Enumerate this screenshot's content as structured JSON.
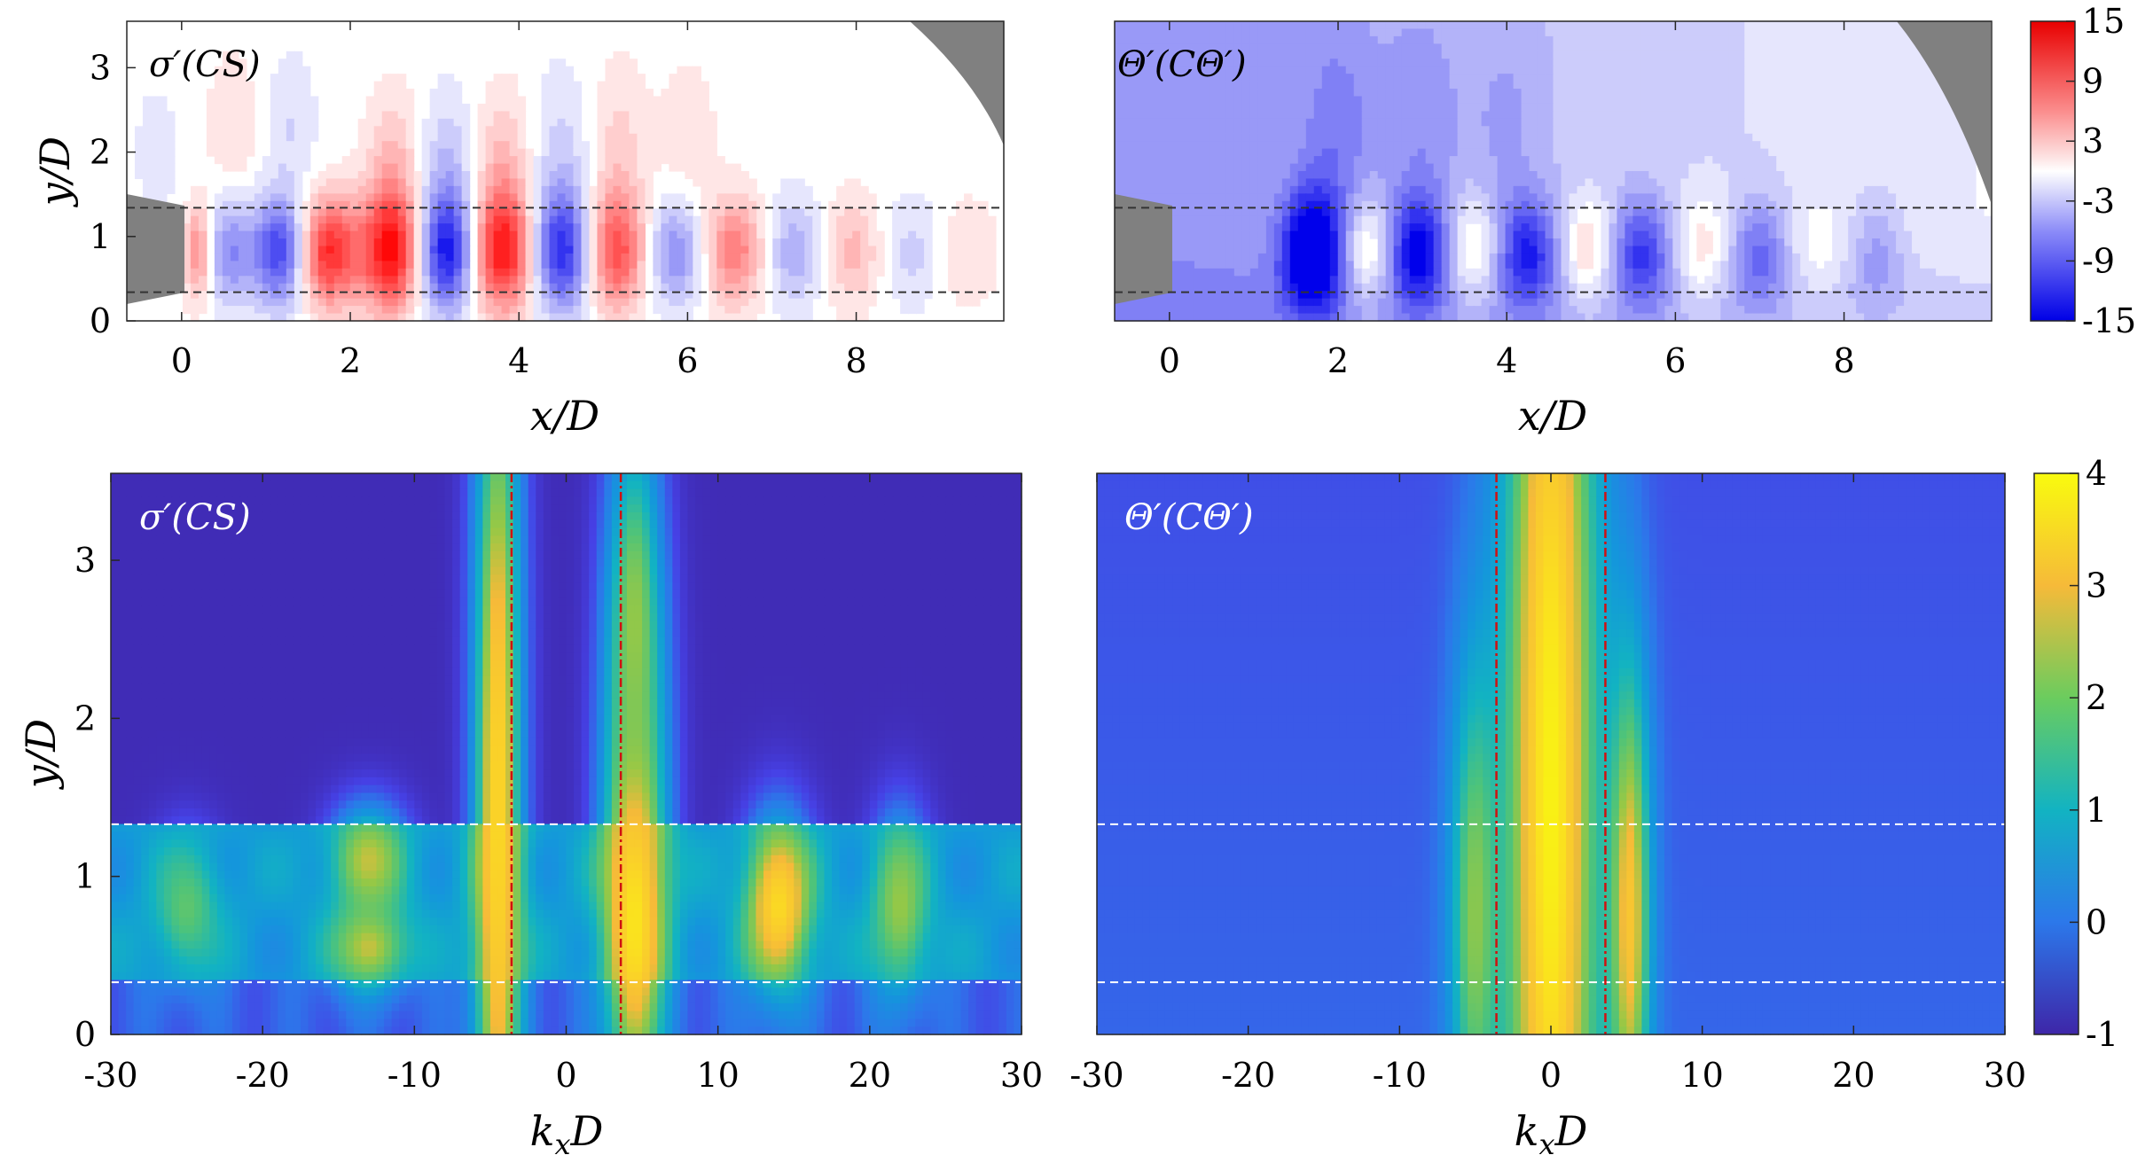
{
  "figure": "four-panel contour figure",
  "chart_data": [
    {
      "id": "top-left",
      "type": "heatmap",
      "title": "σ′(CS)",
      "xlabel": "x/D",
      "ylabel": "y/D",
      "xlim": [
        -0.65,
        9.75
      ],
      "ylim": [
        0,
        3.55
      ],
      "xticks": [
        0,
        2,
        4,
        6,
        8
      ],
      "yticks": [
        0,
        1,
        2,
        3
      ],
      "guide_lines": {
        "orientation": "horizontal",
        "values": [
          0.34,
          1.34
        ],
        "style": "dashed",
        "color": "#333333"
      },
      "colormap": "diverging",
      "note": "alternating red/blue wave packets along shear layer, peak amplitude near x/D 2.5-4",
      "lobes": [
        {
          "x": 0.2,
          "y": 0.82,
          "sign": 1,
          "amp": 0.5,
          "sx": 0.12,
          "sy": 0.4
        },
        {
          "x": 0.55,
          "y": 0.82,
          "sign": -1,
          "amp": 0.45,
          "sx": 0.2,
          "sy": 0.45
        },
        {
          "x": 1.15,
          "y": 0.82,
          "sign": -1,
          "amp": 0.75,
          "sx": 0.22,
          "sy": 0.45
        },
        {
          "x": 1.75,
          "y": 0.82,
          "sign": 1,
          "amp": 0.85,
          "sx": 0.24,
          "sy": 0.45
        },
        {
          "x": 2.5,
          "y": 0.82,
          "sign": 1,
          "amp": 1.0,
          "sx": 0.27,
          "sy": 0.5
        },
        {
          "x": 3.15,
          "y": 0.82,
          "sign": -1,
          "amp": 1.0,
          "sx": 0.27,
          "sy": 0.5
        },
        {
          "x": 3.8,
          "y": 0.82,
          "sign": 1,
          "amp": 1.0,
          "sx": 0.3,
          "sy": 0.5
        },
        {
          "x": 4.5,
          "y": 0.82,
          "sign": -1,
          "amp": 0.9,
          "sx": 0.28,
          "sy": 0.5
        },
        {
          "x": 5.15,
          "y": 0.82,
          "sign": 1,
          "amp": 0.75,
          "sx": 0.28,
          "sy": 0.5
        },
        {
          "x": 5.85,
          "y": 0.82,
          "sign": -1,
          "amp": 0.5,
          "sx": 0.28,
          "sy": 0.45
        },
        {
          "x": 6.55,
          "y": 0.82,
          "sign": 1,
          "amp": 0.55,
          "sx": 0.28,
          "sy": 0.45
        },
        {
          "x": 7.25,
          "y": 0.82,
          "sign": -1,
          "amp": 0.35,
          "sx": 0.27,
          "sy": 0.45
        },
        {
          "x": 7.95,
          "y": 0.82,
          "sign": 1,
          "amp": 0.3,
          "sx": 0.27,
          "sy": 0.45
        },
        {
          "x": 8.65,
          "y": 0.82,
          "sign": -1,
          "amp": 0.2,
          "sx": 0.27,
          "sy": 0.45
        },
        {
          "x": 9.3,
          "y": 0.82,
          "sign": 1,
          "amp": 0.15,
          "sx": 0.27,
          "sy": 0.45
        },
        {
          "x": 2.5,
          "y": 1.9,
          "sign": 1,
          "amp": 0.25,
          "sx": 0.22,
          "sy": 0.6
        },
        {
          "x": 3.15,
          "y": 1.9,
          "sign": -1,
          "amp": 0.22,
          "sx": 0.22,
          "sy": 0.6
        },
        {
          "x": 3.8,
          "y": 1.9,
          "sign": 1,
          "amp": 0.25,
          "sx": 0.22,
          "sy": 0.6
        },
        {
          "x": 4.5,
          "y": 2.0,
          "sign": -1,
          "amp": 0.18,
          "sx": 0.22,
          "sy": 0.7
        },
        {
          "x": 5.2,
          "y": 2.1,
          "sign": 1,
          "amp": 0.18,
          "sx": 0.22,
          "sy": 0.7
        },
        {
          "x": 6.0,
          "y": 2.1,
          "sign": 1,
          "amp": 0.12,
          "sx": 0.25,
          "sy": 0.7
        },
        {
          "x": 0.6,
          "y": 2.3,
          "sign": 1,
          "amp": 0.15,
          "sx": 0.2,
          "sy": 0.6
        },
        {
          "x": 1.3,
          "y": 2.3,
          "sign": -1,
          "amp": 0.15,
          "sx": 0.2,
          "sy": 0.6
        },
        {
          "x": -0.3,
          "y": 2.0,
          "sign": -1,
          "amp": 0.1,
          "sx": 0.2,
          "sy": 0.6
        }
      ]
    },
    {
      "id": "top-right",
      "type": "heatmap",
      "title": "Θ′(CΘ′)",
      "xlabel": "x/D",
      "ylabel": "",
      "xlim": [
        -0.65,
        9.75
      ],
      "ylim": [
        0,
        3.55
      ],
      "xticks": [
        0,
        2,
        4,
        6,
        8
      ],
      "yticks": [],
      "guide_lines": {
        "orientation": "horizontal",
        "values": [
          0.34,
          1.34
        ],
        "style": "dashed",
        "color": "#333333"
      },
      "colormap": "diverging",
      "note": "blue background with alternating lobes strongest near x/D 1.7",
      "lobes": [
        {
          "x": 1.7,
          "y": 0.82,
          "sign": -1,
          "amp": 0.95,
          "sx": 0.25,
          "sy": 0.5
        },
        {
          "x": 2.35,
          "y": 0.82,
          "sign": 1,
          "amp": 0.45,
          "sx": 0.22,
          "sy": 0.45
        },
        {
          "x": 2.95,
          "y": 0.82,
          "sign": -1,
          "amp": 0.7,
          "sx": 0.24,
          "sy": 0.45
        },
        {
          "x": 3.6,
          "y": 0.82,
          "sign": 1,
          "amp": 0.4,
          "sx": 0.22,
          "sy": 0.45
        },
        {
          "x": 4.25,
          "y": 0.82,
          "sign": -1,
          "amp": 0.6,
          "sx": 0.24,
          "sy": 0.45
        },
        {
          "x": 4.95,
          "y": 0.82,
          "sign": 1,
          "amp": 0.4,
          "sx": 0.22,
          "sy": 0.45
        },
        {
          "x": 5.6,
          "y": 0.82,
          "sign": -1,
          "amp": 0.55,
          "sx": 0.24,
          "sy": 0.45
        },
        {
          "x": 6.3,
          "y": 0.82,
          "sign": 1,
          "amp": 0.3,
          "sx": 0.22,
          "sy": 0.45
        },
        {
          "x": 7.0,
          "y": 0.82,
          "sign": -1,
          "amp": 0.4,
          "sx": 0.22,
          "sy": 0.45
        },
        {
          "x": 7.7,
          "y": 0.82,
          "sign": 1,
          "amp": 0.15,
          "sx": 0.22,
          "sy": 0.45
        },
        {
          "x": 8.4,
          "y": 0.82,
          "sign": -1,
          "amp": 0.25,
          "sx": 0.22,
          "sy": 0.45
        },
        {
          "x": 2.0,
          "y": 2.2,
          "sign": -1,
          "amp": 0.2,
          "sx": 0.3,
          "sy": 0.9
        },
        {
          "x": 3.0,
          "y": 2.3,
          "sign": -1,
          "amp": 0.15,
          "sx": 0.3,
          "sy": 0.9
        },
        {
          "x": 4.0,
          "y": 2.4,
          "sign": -1,
          "amp": 0.12,
          "sx": 0.3,
          "sy": 0.9
        }
      ],
      "background_gradient": true
    },
    {
      "id": "top-colorbar",
      "type": "colorbar",
      "ticks": [
        "15",
        "9",
        "3",
        "-3",
        "-9",
        "-15"
      ],
      "range": [
        -15,
        15
      ]
    },
    {
      "id": "bottom-left",
      "type": "heatmap",
      "title": "σ′(CS)",
      "xlabel": "k_xD",
      "ylabel": "y/D",
      "xlim": [
        -30,
        30
      ],
      "ylim": [
        0,
        3.55
      ],
      "xticks": [
        -30,
        -20,
        -10,
        0,
        10,
        20,
        30
      ],
      "yticks": [
        0,
        1,
        2,
        3
      ],
      "guide_lines_h": {
        "values": [
          0.33,
          1.33
        ],
        "style": "dashed",
        "color": "#ffffff"
      },
      "guide_lines_v": {
        "values": [
          -3.6,
          3.6
        ],
        "style": "dash-dot",
        "color": "#d01010"
      },
      "colormap": "parula",
      "range": [
        -1,
        4
      ],
      "background_value": -0.85,
      "band_value": 1.0,
      "features": [
        {
          "kx": -4.5,
          "y": 1.5,
          "val": 3.6,
          "skx": 1.2,
          "sy": 2.5
        },
        {
          "kx": 4.5,
          "y": 0.9,
          "val": 4.0,
          "skx": 1.5,
          "sy": 1.0
        },
        {
          "kx": 4.5,
          "y": 2.6,
          "val": 2.6,
          "skx": 1.4,
          "sy": 1.0
        },
        {
          "kx": 14.0,
          "y": 0.82,
          "val": 3.6,
          "skx": 1.6,
          "sy": 0.4
        },
        {
          "kx": 22.0,
          "y": 0.82,
          "val": 2.6,
          "skx": 1.4,
          "sy": 0.4
        },
        {
          "kx": -13.0,
          "y": 1.1,
          "val": 2.8,
          "skx": 1.8,
          "sy": 0.25
        },
        {
          "kx": -13.0,
          "y": 0.55,
          "val": 2.8,
          "skx": 1.8,
          "sy": 0.2
        },
        {
          "kx": -25.0,
          "y": 0.8,
          "val": 2.2,
          "skx": 1.6,
          "sy": 0.3
        }
      ]
    },
    {
      "id": "bottom-right",
      "type": "heatmap",
      "title": "Θ′(CΘ′)",
      "xlabel": "k_xD",
      "ylabel": "",
      "xlim": [
        -30,
        30
      ],
      "ylim": [
        0,
        3.55
      ],
      "xticks": [
        -30,
        -20,
        -10,
        0,
        10,
        20,
        30
      ],
      "yticks": [],
      "guide_lines_h": {
        "values": [
          0.33,
          1.33
        ],
        "style": "dashed",
        "color": "#ffffff"
      },
      "guide_lines_v": {
        "values": [
          -3.6,
          3.6
        ],
        "style": "dash-dot",
        "color": "#d01010"
      },
      "colormap": "parula",
      "range": [
        -1,
        4
      ],
      "background_value": 0.05,
      "features": [
        {
          "kx": 0.0,
          "y": 1.8,
          "val": 4.0,
          "skx": 2.4,
          "sy": 4.0
        },
        {
          "kx": 5.2,
          "y": 0.8,
          "val": 3.3,
          "skx": 1.0,
          "sy": 1.2
        },
        {
          "kx": -5.0,
          "y": 0.8,
          "val": 2.6,
          "skx": 1.2,
          "sy": 1.2
        }
      ]
    },
    {
      "id": "bottom-colorbar",
      "type": "colorbar",
      "ticks": [
        "4",
        "3",
        "2",
        "1",
        "0",
        "-1"
      ],
      "range": [
        -1,
        4
      ]
    }
  ]
}
